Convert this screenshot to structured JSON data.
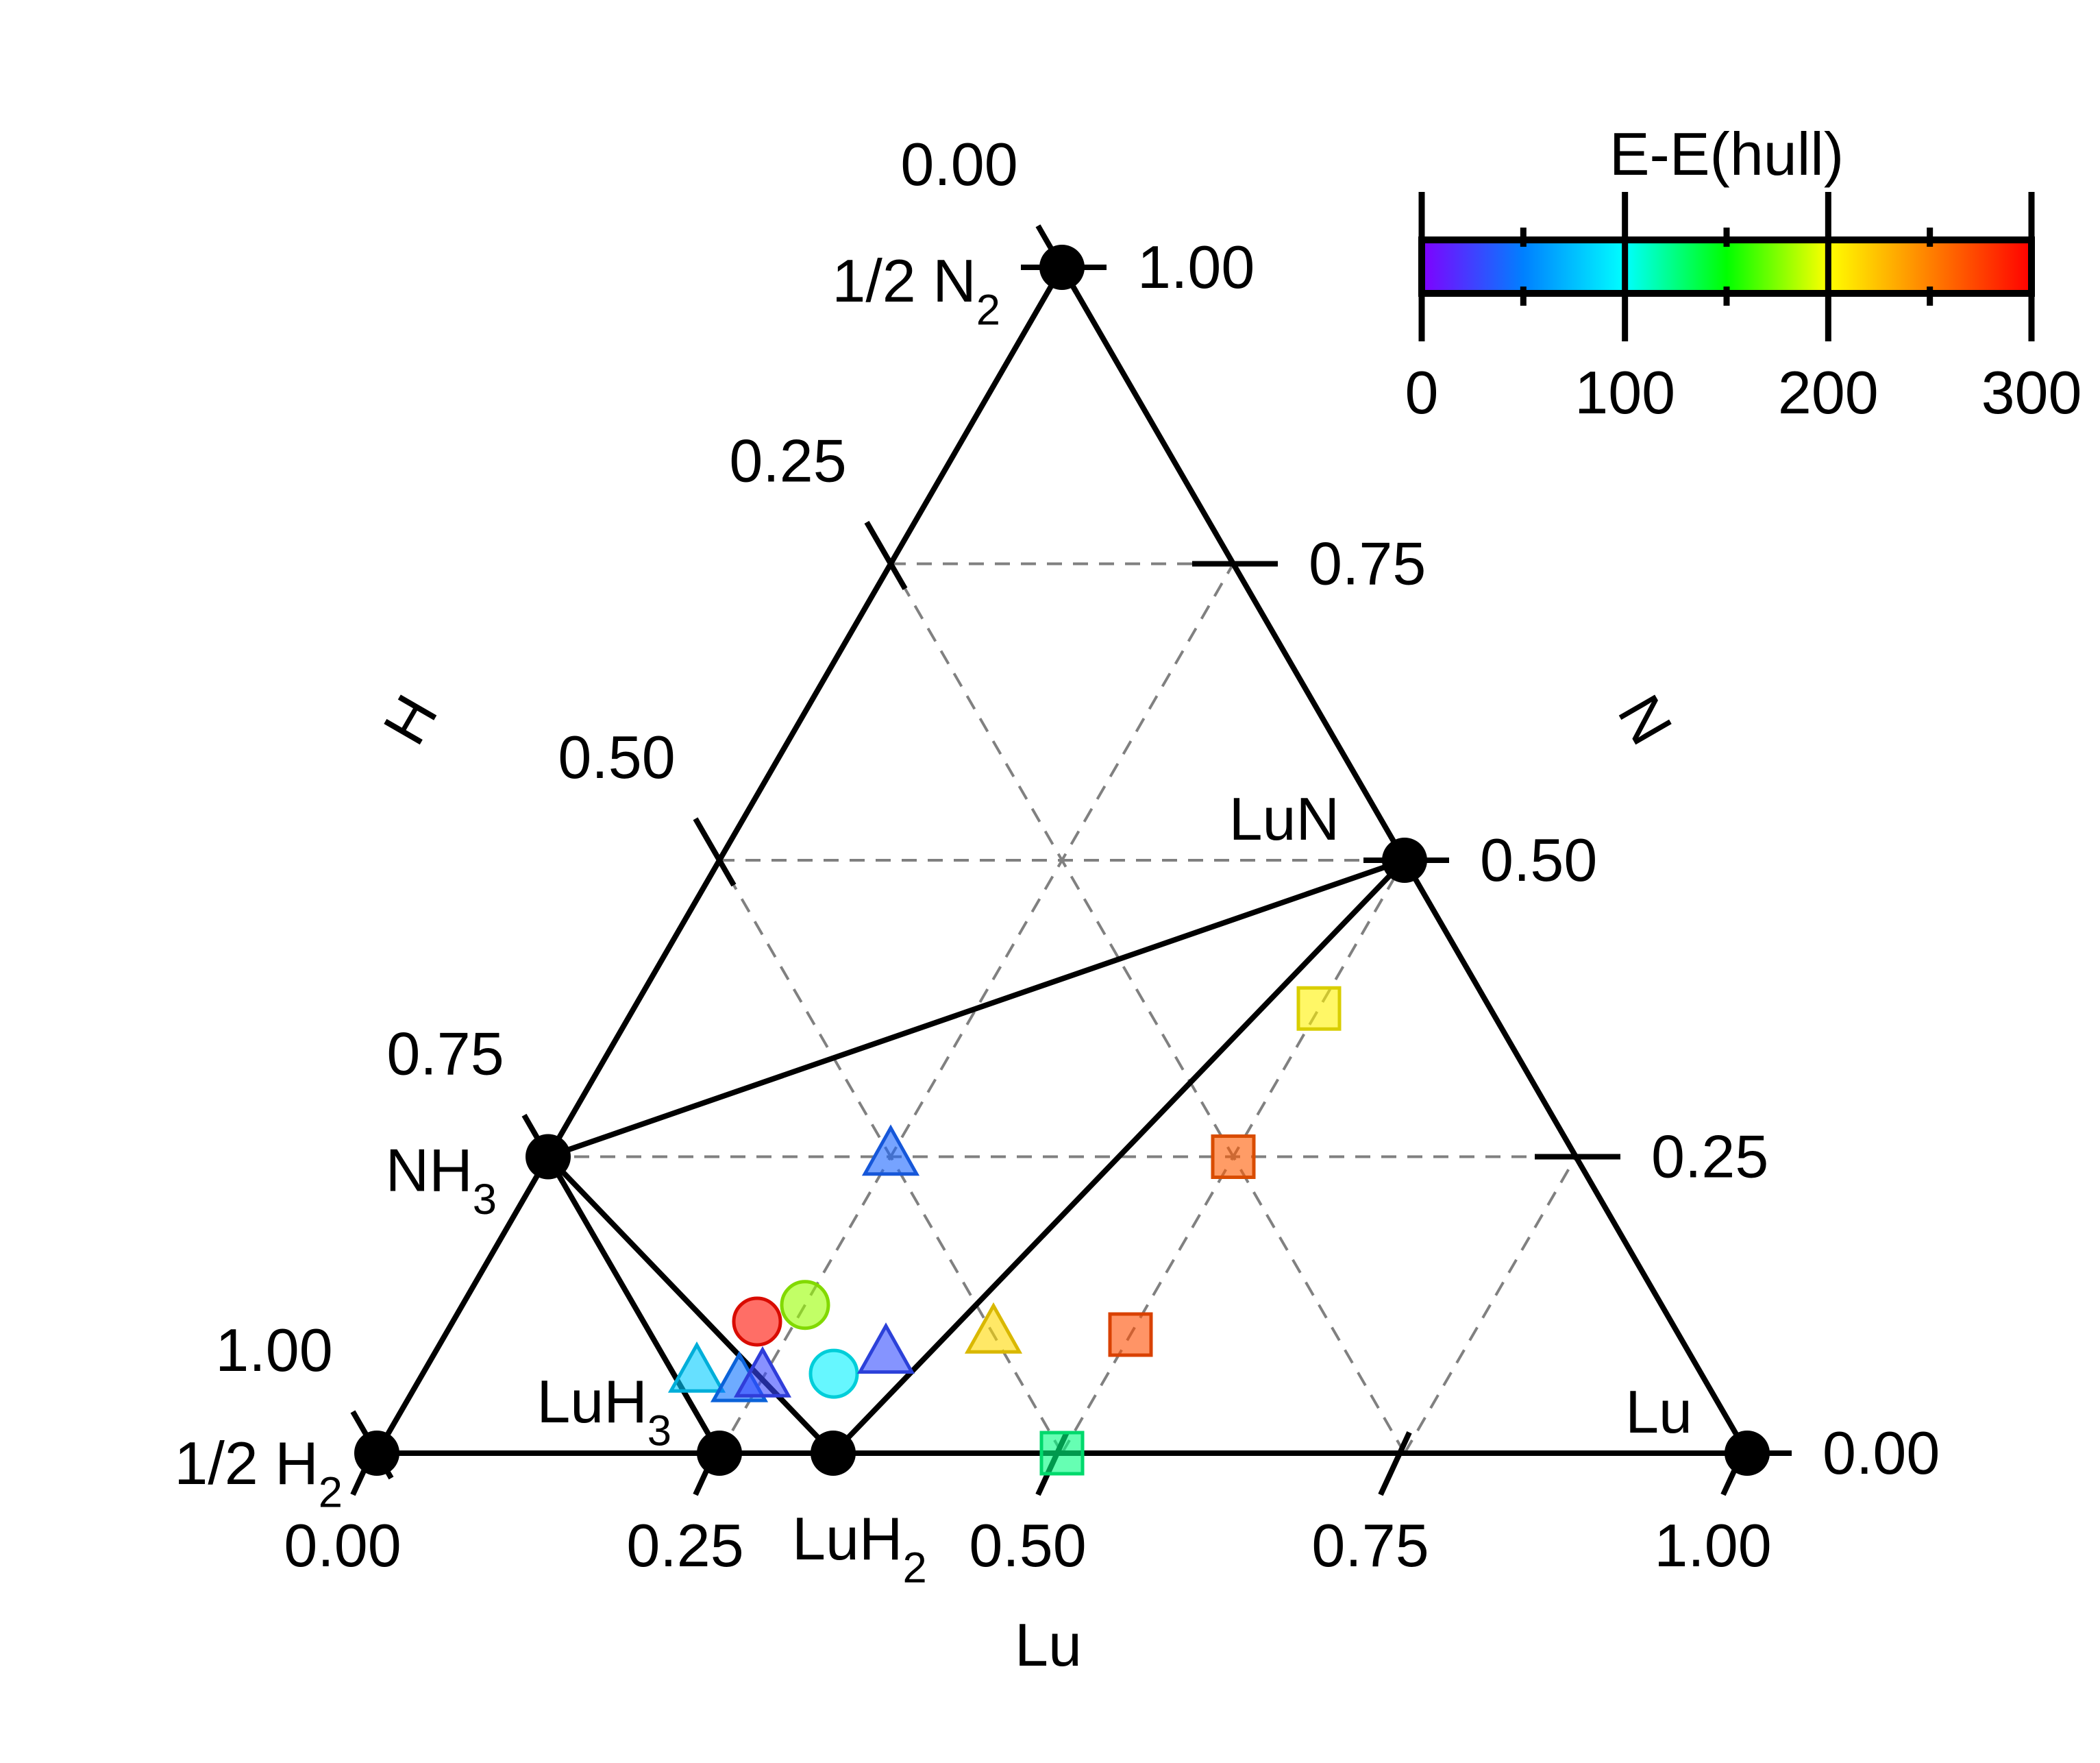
{
  "chart_data": {
    "type": "scatter",
    "subtype": "ternary",
    "axes": {
      "bottom": {
        "label": "Lu",
        "ticks": [
          "0.00",
          "0.25",
          "0.50",
          "0.75",
          "1.00"
        ]
      },
      "left": {
        "label": "H",
        "ticks": [
          "0.00",
          "0.25",
          "0.50",
          "0.75",
          "1.00"
        ]
      },
      "right": {
        "label": "N",
        "ticks": [
          "1.00",
          "0.75",
          "0.50",
          "0.25",
          "0.00"
        ]
      }
    },
    "grid": true,
    "corner_labels": {
      "top": {
        "base": "1/2 N",
        "sub": "2"
      },
      "left": {
        "base": "1/2 H",
        "sub": "2"
      },
      "right": {
        "base": "Lu",
        "sub": ""
      }
    },
    "stable_phases": [
      {
        "name": "1/2 N2",
        "label_base": "",
        "label_sub": "",
        "lu": 0.0,
        "n": 1.0
      },
      {
        "name": "1/2 H2",
        "label_base": "",
        "label_sub": "",
        "lu": 0.0,
        "n": 0.0
      },
      {
        "name": "Lu",
        "label_base": "",
        "label_sub": "",
        "lu": 1.0,
        "n": 0.0
      },
      {
        "name": "LuN",
        "label_base": "LuN",
        "label_sub": "",
        "lu": 0.5,
        "n": 0.5
      },
      {
        "name": "NH3",
        "label_base": "NH",
        "label_sub": "3",
        "lu": 0.0,
        "n": 0.25
      },
      {
        "name": "LuH3",
        "label_base": "LuH",
        "label_sub": "3",
        "lu": 0.25,
        "n": 0.0
      },
      {
        "name": "LuH2",
        "label_base": "LuH",
        "label_sub": "2",
        "lu": 0.333,
        "n": 0.0
      }
    ],
    "tie_lines": [
      [
        "NH3",
        "LuN"
      ],
      [
        "NH3",
        "LuH3"
      ],
      [
        "NH3",
        "LuH2"
      ],
      [
        "LuH2",
        "LuN"
      ]
    ],
    "points": [
      {
        "shape": "triangle",
        "lu": 0.25,
        "n": 0.25,
        "e": 40
      },
      {
        "shape": "circle",
        "lu": 0.25,
        "n": 0.125,
        "e": 180
      },
      {
        "shape": "circle",
        "lu": 0.222,
        "n": 0.111,
        "e": 295
      },
      {
        "shape": "circle",
        "lu": 0.3,
        "n": 0.067,
        "e": 95
      },
      {
        "shape": "triangle",
        "lu": 0.33,
        "n": 0.083,
        "e": 30
      },
      {
        "shape": "triangle",
        "lu": 0.2,
        "n": 0.067,
        "e": 80
      },
      {
        "shape": "triangle",
        "lu": 0.235,
        "n": 0.059,
        "e": 45
      },
      {
        "shape": "triangle",
        "lu": 0.25,
        "n": 0.063,
        "e": 28
      },
      {
        "shape": "triangle",
        "lu": 0.4,
        "n": 0.1,
        "e": 215
      },
      {
        "shape": "square",
        "lu": 0.5,
        "n": 0.0,
        "e": 125
      },
      {
        "shape": "square",
        "lu": 0.5,
        "n": 0.1,
        "e": 270
      },
      {
        "shape": "square",
        "lu": 0.5,
        "n": 0.25,
        "e": 265
      },
      {
        "shape": "square",
        "lu": 0.5,
        "n": 0.375,
        "e": 205
      }
    ],
    "colorbar": {
      "title": "E-E(hull)",
      "min": 0,
      "max": 300,
      "ticks": [
        "0",
        "100",
        "200",
        "300"
      ],
      "stops": [
        "#8000ff",
        "#0080ff",
        "#00ffff",
        "#00ff00",
        "#ffff00",
        "#ff8000",
        "#ff0000"
      ]
    }
  }
}
